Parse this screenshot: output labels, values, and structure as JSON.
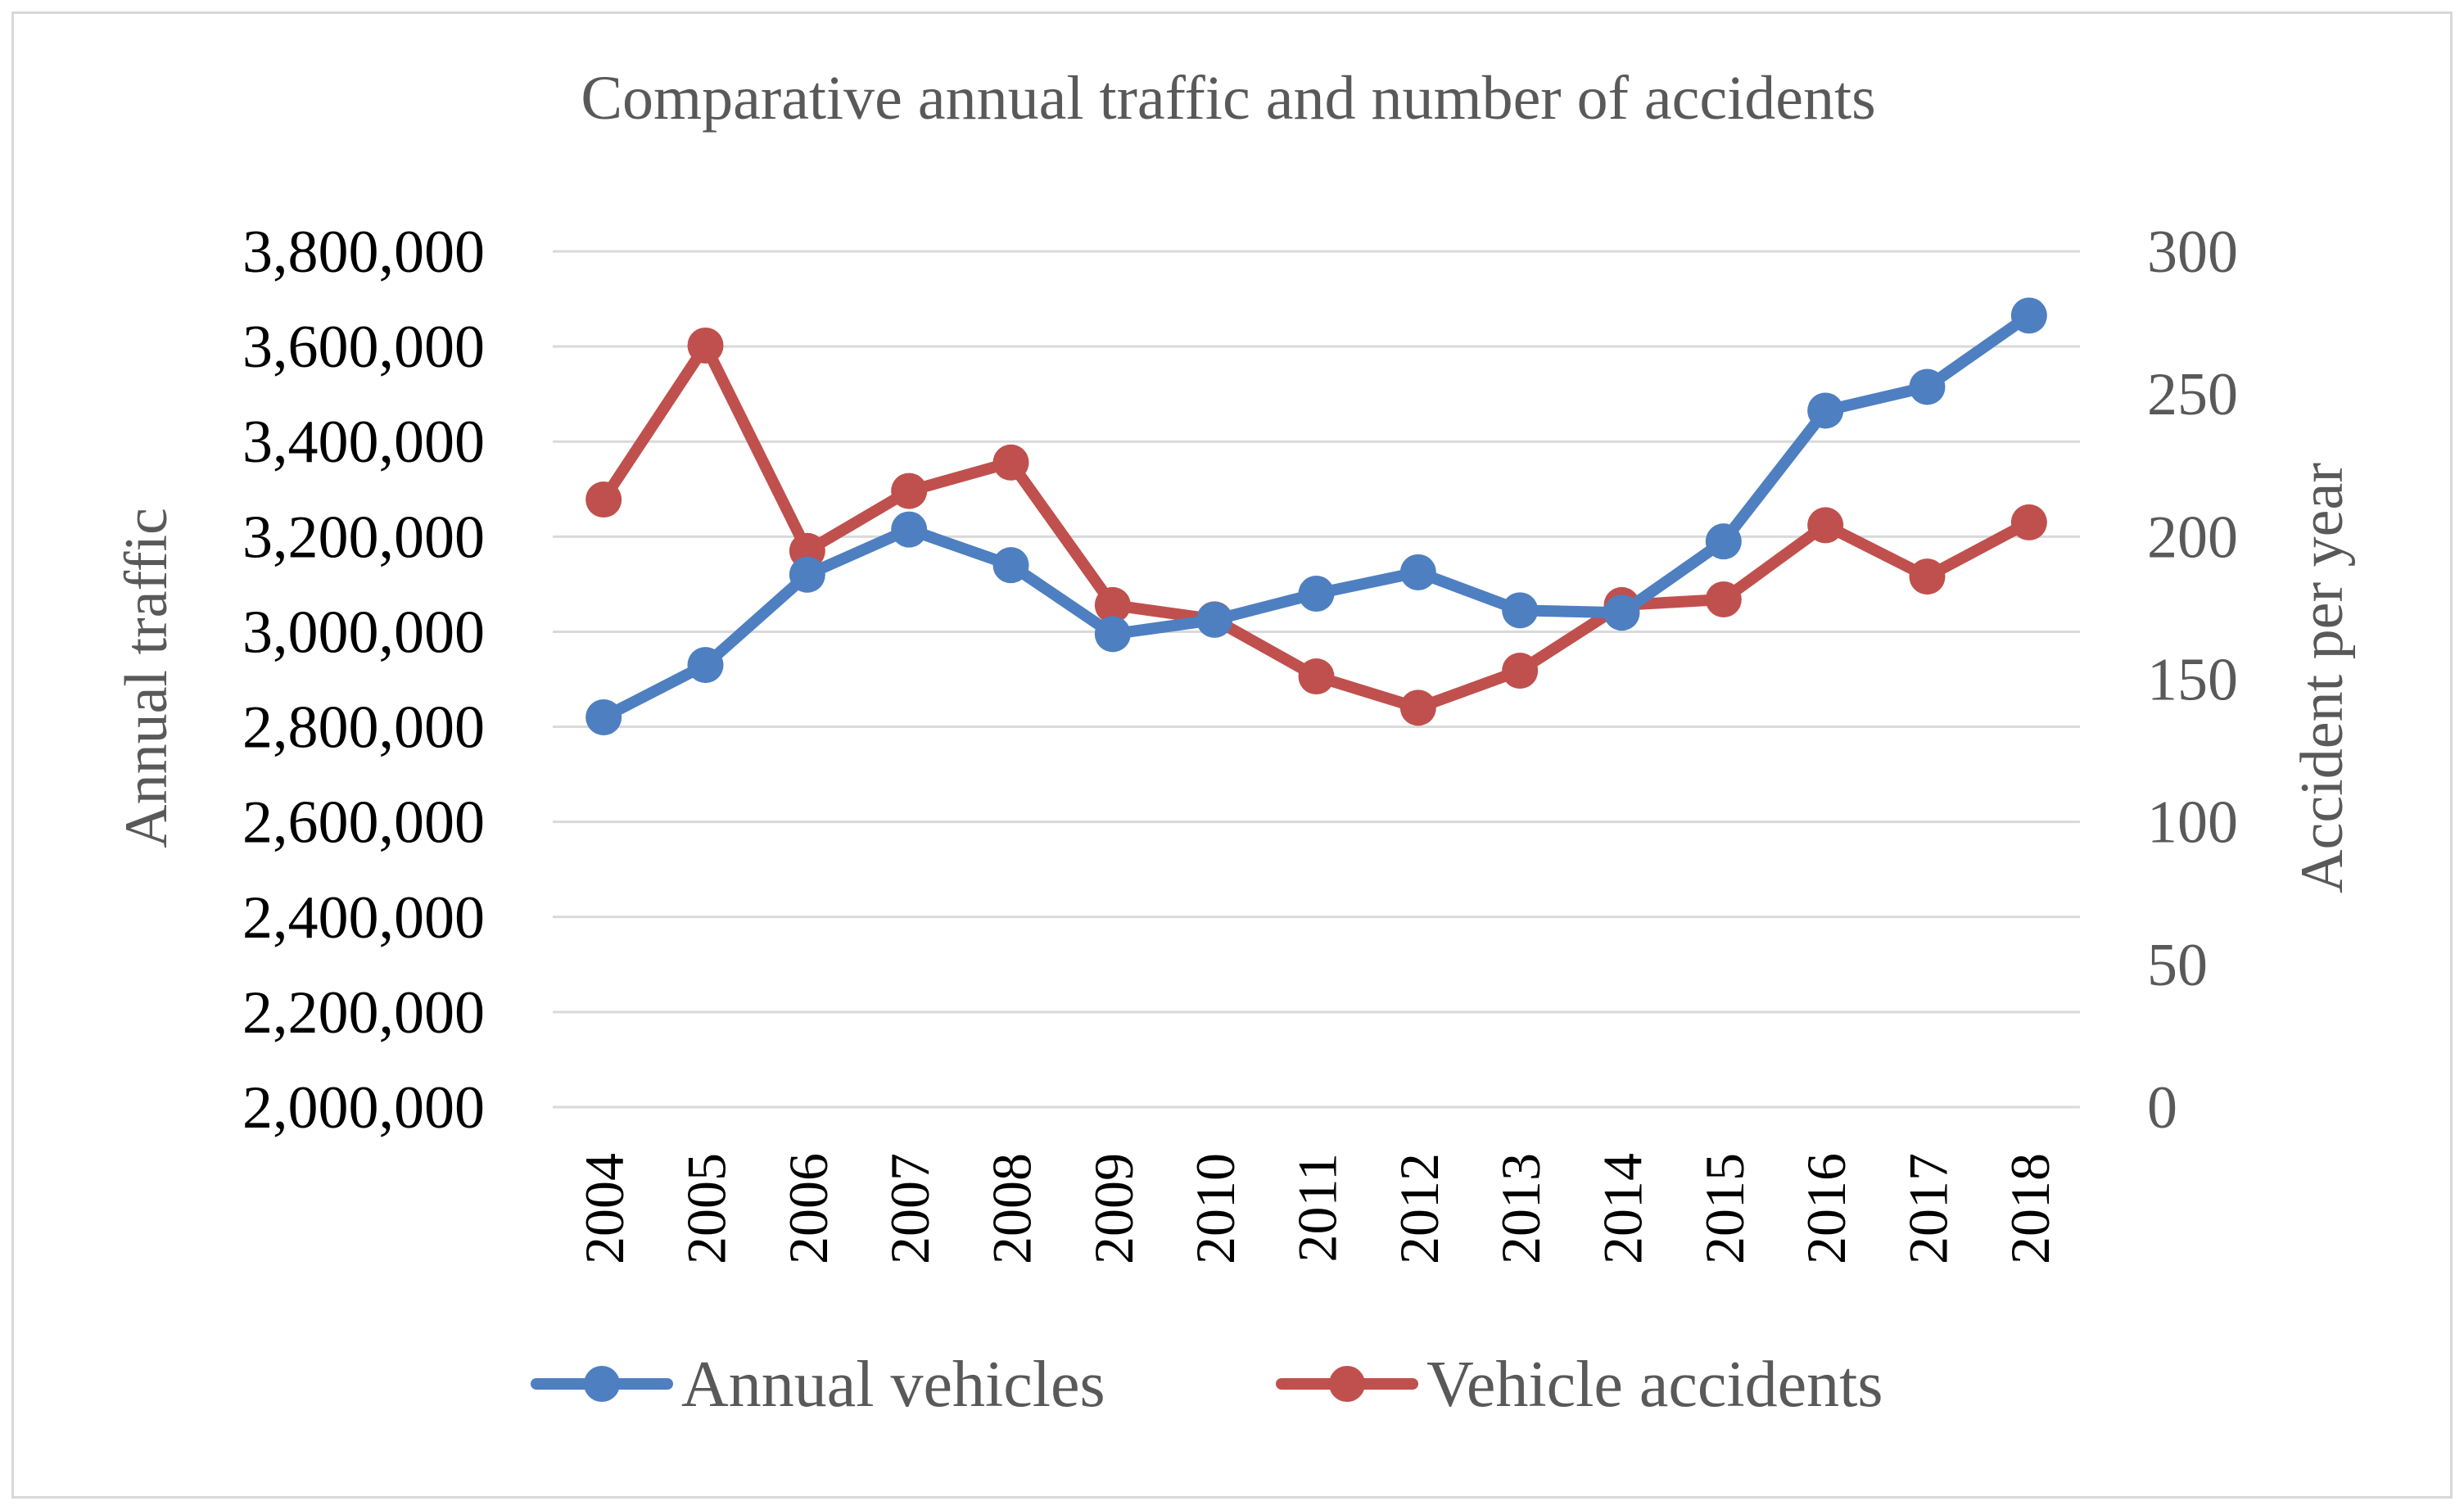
{
  "chart_data": {
    "type": "line",
    "title": "Comparative annual traffic and number of accidents",
    "categories": [
      "2004",
      "2005",
      "2006",
      "2007",
      "2008",
      "2009",
      "2010",
      "2011",
      "2012",
      "2013",
      "2014",
      "2015",
      "2016",
      "2017",
      "2018"
    ],
    "y_left": {
      "label": "Annual traffic",
      "lim": [
        2000000,
        3800000
      ],
      "ticks": [
        "2,000,000",
        "2,200,000",
        "2,400,000",
        "2,600,000",
        "2,800,000",
        "3,000,000",
        "3,200,000",
        "3,400,000",
        "3,600,000",
        "3,800,000"
      ]
    },
    "y_right": {
      "label": "Accident per year",
      "lim": [
        0,
        300
      ],
      "ticks": [
        "0",
        "50",
        "100",
        "150",
        "200",
        "250",
        "300"
      ]
    },
    "series": [
      {
        "name": "Annual vehicles",
        "axis": "left",
        "color": "#4e7fc1",
        "values": [
          2820000,
          2930000,
          3120000,
          3215000,
          3140000,
          2995000,
          3025000,
          3080000,
          3125000,
          3045000,
          3040000,
          3190000,
          3465000,
          3515000,
          3665000
        ]
      },
      {
        "name": "Vehicle accidents",
        "axis": "right",
        "color": "#c0504d",
        "values": [
          213,
          267,
          195,
          216,
          226,
          176,
          171,
          151,
          140,
          153,
          176,
          178,
          204,
          186,
          205
        ]
      }
    ],
    "grid": true,
    "legend_position": "bottom"
  }
}
